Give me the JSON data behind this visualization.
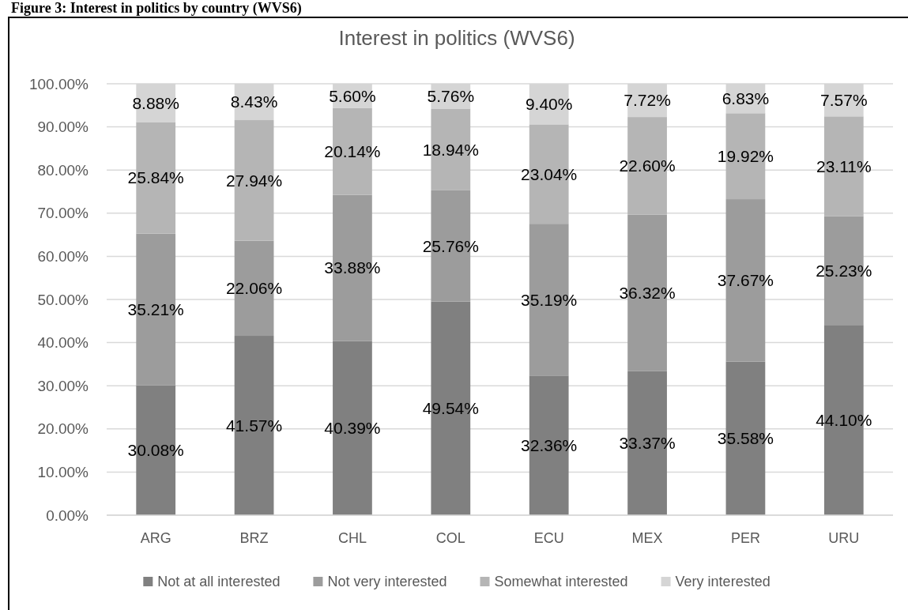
{
  "chart_data": {
    "type": "bar",
    "stacked": true,
    "title": "Interest in politics (WVS6)",
    "annotations": [
      "Figure 3: Interest in politics by country (WVS6)"
    ],
    "categories": [
      "ARG",
      "BRZ",
      "CHL",
      "COL",
      "ECU",
      "MEX",
      "PER",
      "URU"
    ],
    "series": [
      {
        "name": "Not at all interested",
        "color": "#808080",
        "values": [
          30.08,
          41.57,
          40.39,
          49.54,
          32.36,
          33.37,
          35.58,
          44.1
        ],
        "value_labels": [
          "30.08%",
          "41.57%",
          "40.39%",
          "49.54%",
          "32.36%",
          "33.37%",
          "35.58%",
          "44.10%"
        ]
      },
      {
        "name": "Not very interested",
        "color": "#9c9c9c",
        "values": [
          35.21,
          22.06,
          33.88,
          25.76,
          35.19,
          36.32,
          37.67,
          25.23
        ],
        "value_labels": [
          "35.21%",
          "22.06%",
          "33.88%",
          "25.76%",
          "35.19%",
          "36.32%",
          "37.67%",
          "25.23%"
        ]
      },
      {
        "name": "Somewhat interested",
        "color": "#b5b5b5",
        "values": [
          25.84,
          27.94,
          20.14,
          18.94,
          23.04,
          22.6,
          19.92,
          23.11
        ],
        "value_labels": [
          "25.84%",
          "27.94%",
          "20.14%",
          "18.94%",
          "23.04%",
          "22.60%",
          "19.92%",
          "23.11%"
        ]
      },
      {
        "name": "Very interested",
        "color": "#d5d5d5",
        "values": [
          8.88,
          8.43,
          5.6,
          5.76,
          9.4,
          7.72,
          6.83,
          7.57
        ],
        "value_labels": [
          "8.88%",
          "8.43%",
          "5.60%",
          "5.76%",
          "9.40%",
          "7.72%",
          "6.83%",
          "7.57%"
        ]
      }
    ],
    "ylim": [
      0,
      100
    ],
    "yticks": [
      {
        "value": 0,
        "label": "0.00%"
      },
      {
        "value": 10,
        "label": "10.00%"
      },
      {
        "value": 20,
        "label": "20.00%"
      },
      {
        "value": 30,
        "label": "30.00%"
      },
      {
        "value": 40,
        "label": "40.00%"
      },
      {
        "value": 50,
        "label": "50.00%"
      },
      {
        "value": 60,
        "label": "60.00%"
      },
      {
        "value": 70,
        "label": "70.00%"
      },
      {
        "value": 80,
        "label": "80.00%"
      },
      {
        "value": 90,
        "label": "90.00%"
      },
      {
        "value": 100,
        "label": "100.00%"
      }
    ],
    "grid": "y",
    "legend": "bottom"
  }
}
